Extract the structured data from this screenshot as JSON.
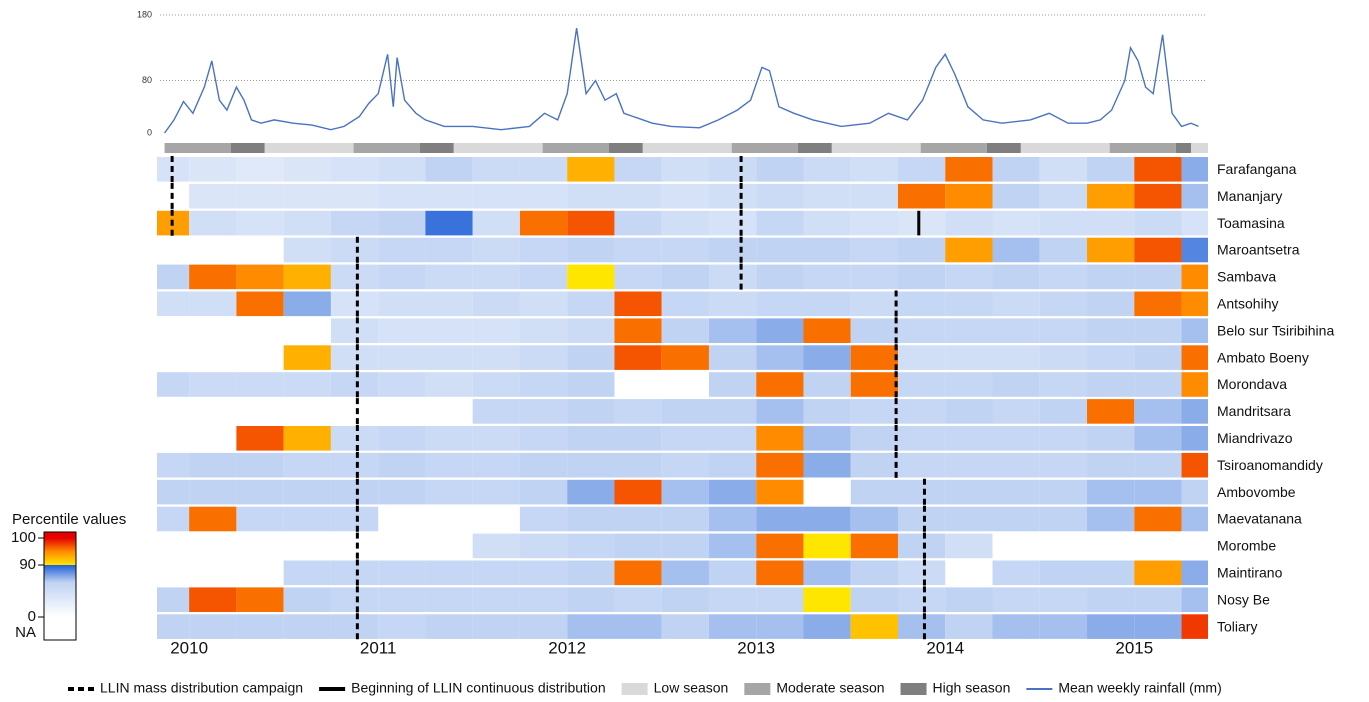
{
  "chart_data": {
    "type": "heatmap",
    "xlim": [
      2009.83,
      2015.39
    ],
    "xticks": [
      2010,
      2011,
      2012,
      2013,
      2014,
      2015
    ],
    "bins": [
      2009.83,
      2010,
      2010.25,
      2010.5,
      2010.75,
      2011,
      2011.25,
      2011.5,
      2011.75,
      2012,
      2012.25,
      2012.5,
      2012.75,
      2013,
      2013.25,
      2013.5,
      2013.75,
      2014,
      2014.25,
      2014.5,
      2014.75,
      2015,
      2015.25,
      2015.39
    ],
    "colorscale": [
      [
        0,
        "#ffffff"
      ],
      [
        60,
        "#c0d3f3"
      ],
      [
        89.9,
        "#1f5fd6"
      ],
      [
        90,
        "#ffe600"
      ],
      [
        95,
        "#ff8c00"
      ],
      [
        100,
        "#e60000"
      ]
    ],
    "na_color": "#ffffff",
    "colorbar": {
      "title": "Percentile values",
      "ticks": [
        100,
        90,
        0
      ],
      "na_label": "NA"
    },
    "rows": [
      {
        "name": "Farafangana",
        "mass_distribution": [
          2009.91,
          2012.92
        ],
        "values": [
          40,
          35,
          30,
          35,
          40,
          45,
          60,
          50,
          50,
          93,
          55,
          45,
          50,
          60,
          50,
          45,
          55,
          96,
          60,
          45,
          60,
          97,
          70
        ]
      },
      {
        "name": "Mananjary",
        "mass_distribution": [
          2009.91,
          2012.92
        ],
        "values": [
          null,
          35,
          35,
          35,
          35,
          40,
          40,
          40,
          40,
          45,
          45,
          40,
          45,
          50,
          45,
          45,
          96,
          95,
          60,
          50,
          94,
          97,
          65
        ]
      },
      {
        "name": "Toamasina",
        "mass_distribution": [
          2009.91,
          2012.92
        ],
        "continuous_distribution": [
          2013.86
        ],
        "values": [
          94,
          45,
          40,
          45,
          55,
          60,
          85,
          45,
          96,
          97,
          55,
          45,
          40,
          55,
          45,
          40,
          35,
          45,
          40,
          45,
          45,
          50,
          40
        ]
      },
      {
        "name": "Maroantsetra",
        "mass_distribution": [
          2010.89,
          2012.92
        ],
        "values": [
          null,
          null,
          null,
          45,
          50,
          55,
          55,
          50,
          55,
          60,
          55,
          55,
          60,
          60,
          60,
          55,
          60,
          94,
          65,
          60,
          94,
          97,
          80
        ]
      },
      {
        "name": "Sambava",
        "mass_distribution": [
          2010.89,
          2012.92
        ],
        "values": [
          60,
          96,
          95,
          93,
          50,
          55,
          50,
          50,
          55,
          90,
          55,
          60,
          50,
          60,
          55,
          55,
          60,
          55,
          60,
          55,
          60,
          60,
          95
        ]
      },
      {
        "name": "Antsohihy",
        "mass_distribution": [
          2010.89,
          2013.74
        ],
        "values": [
          45,
          45,
          96,
          70,
          40,
          45,
          45,
          50,
          45,
          55,
          97,
          55,
          50,
          55,
          55,
          50,
          55,
          55,
          50,
          55,
          60,
          96,
          95
        ]
      },
      {
        "name": "Belo sur Tsiribihina",
        "mass_distribution": [
          2010.89,
          2013.74
        ],
        "values": [
          null,
          null,
          null,
          null,
          45,
          40,
          40,
          40,
          45,
          50,
          96,
          60,
          65,
          70,
          96,
          60,
          55,
          55,
          55,
          55,
          60,
          60,
          65
        ]
      },
      {
        "name": "Ambato Boeny",
        "mass_distribution": [
          2010.89,
          2013.74
        ],
        "values": [
          null,
          null,
          null,
          93,
          45,
          45,
          45,
          45,
          50,
          60,
          97,
          96,
          60,
          65,
          70,
          96,
          45,
          45,
          45,
          50,
          55,
          60,
          96
        ]
      },
      {
        "name": "Morondava",
        "mass_distribution": [
          2010.89,
          2013.74
        ],
        "values": [
          55,
          50,
          50,
          50,
          55,
          50,
          45,
          50,
          55,
          60,
          null,
          null,
          60,
          96,
          60,
          96,
          55,
          55,
          60,
          55,
          60,
          60,
          95
        ]
      },
      {
        "name": "Mandritsara",
        "mass_distribution": [
          2010.89,
          2013.74
        ],
        "values": [
          null,
          null,
          null,
          null,
          null,
          null,
          null,
          55,
          55,
          60,
          55,
          60,
          60,
          65,
          60,
          55,
          55,
          60,
          55,
          60,
          96,
          65,
          70
        ]
      },
      {
        "name": "Miandrivazo",
        "mass_distribution": [
          2010.89,
          2013.74
        ],
        "values": [
          null,
          null,
          97,
          93,
          50,
          55,
          50,
          50,
          55,
          60,
          60,
          55,
          55,
          95,
          65,
          60,
          55,
          55,
          55,
          55,
          60,
          65,
          70
        ]
      },
      {
        "name": "Tsiroanomandidy",
        "mass_distribution": [
          2010.89,
          2013.74
        ],
        "values": [
          55,
          60,
          60,
          55,
          55,
          60,
          55,
          55,
          60,
          60,
          60,
          55,
          60,
          96,
          70,
          60,
          55,
          55,
          55,
          55,
          60,
          60,
          97
        ]
      },
      {
        "name": "Ambovombe",
        "mass_distribution": [
          2010.89,
          2013.89
        ],
        "values": [
          60,
          60,
          60,
          60,
          60,
          60,
          55,
          55,
          60,
          70,
          97,
          65,
          70,
          95,
          null,
          60,
          60,
          60,
          60,
          60,
          65,
          65,
          60
        ]
      },
      {
        "name": "Maevatanana",
        "mass_distribution": [
          2010.89,
          2013.89
        ],
        "values": [
          55,
          96,
          55,
          55,
          55,
          null,
          null,
          null,
          55,
          60,
          60,
          60,
          65,
          70,
          70,
          65,
          60,
          60,
          60,
          60,
          65,
          96,
          65
        ]
      },
      {
        "name": "Morombe",
        "mass_distribution": [
          2010.89,
          2013.89
        ],
        "values": [
          null,
          null,
          null,
          null,
          null,
          null,
          null,
          45,
          50,
          55,
          60,
          60,
          65,
          96,
          90,
          96,
          60,
          45,
          null,
          null,
          null,
          null,
          null
        ]
      },
      {
        "name": "Maintirano",
        "mass_distribution": [
          2010.89,
          2013.89
        ],
        "values": [
          null,
          null,
          null,
          55,
          55,
          55,
          55,
          55,
          55,
          60,
          96,
          65,
          60,
          96,
          65,
          60,
          50,
          null,
          55,
          60,
          60,
          94,
          70
        ]
      },
      {
        "name": "Nosy Be",
        "mass_distribution": [
          2010.89,
          2013.89
        ],
        "values": [
          60,
          97,
          96,
          60,
          55,
          55,
          55,
          55,
          55,
          60,
          55,
          60,
          55,
          55,
          90,
          60,
          55,
          60,
          55,
          55,
          60,
          60,
          65
        ]
      },
      {
        "name": "Toliary",
        "mass_distribution": [
          2010.89,
          2013.89
        ],
        "values": [
          60,
          60,
          60,
          60,
          60,
          55,
          60,
          60,
          60,
          65,
          65,
          60,
          65,
          65,
          70,
          92,
          65,
          60,
          65,
          65,
          70,
          70,
          98
        ]
      }
    ],
    "rainfall": {
      "type": "line",
      "name": "Mean weekly rainfall (mm)",
      "color": "#4a72c4",
      "ylim": [
        0,
        180
      ],
      "yticks": [
        0,
        80,
        180
      ],
      "grid": true,
      "x": [
        2009.87,
        2009.92,
        2009.97,
        2010.02,
        2010.08,
        2010.12,
        2010.16,
        2010.2,
        2010.25,
        2010.29,
        2010.33,
        2010.38,
        2010.45,
        2010.55,
        2010.65,
        2010.75,
        2010.82,
        2010.9,
        2010.95,
        2011.0,
        2011.05,
        2011.08,
        2011.1,
        2011.14,
        2011.2,
        2011.25,
        2011.35,
        2011.5,
        2011.65,
        2011.8,
        2011.88,
        2011.95,
        2012.0,
        2012.05,
        2012.1,
        2012.15,
        2012.2,
        2012.26,
        2012.3,
        2012.35,
        2012.45,
        2012.55,
        2012.7,
        2012.8,
        2012.9,
        2012.97,
        2013.03,
        2013.07,
        2013.12,
        2013.2,
        2013.3,
        2013.45,
        2013.6,
        2013.7,
        2013.8,
        2013.88,
        2013.95,
        2014.0,
        2014.05,
        2014.12,
        2014.2,
        2014.3,
        2014.45,
        2014.55,
        2014.65,
        2014.75,
        2014.82,
        2014.88,
        2014.95,
        2014.98,
        2015.02,
        2015.06,
        2015.1,
        2015.15,
        2015.2,
        2015.25,
        2015.3,
        2015.34
      ],
      "values": [
        0,
        20,
        48,
        30,
        70,
        110,
        50,
        35,
        70,
        50,
        20,
        15,
        20,
        15,
        12,
        5,
        10,
        25,
        45,
        60,
        120,
        40,
        115,
        50,
        30,
        20,
        10,
        10,
        5,
        10,
        30,
        20,
        60,
        160,
        60,
        80,
        50,
        60,
        30,
        25,
        15,
        10,
        8,
        20,
        35,
        50,
        100,
        95,
        40,
        30,
        20,
        10,
        15,
        30,
        20,
        50,
        100,
        120,
        90,
        40,
        20,
        15,
        20,
        30,
        15,
        15,
        20,
        35,
        80,
        130,
        110,
        70,
        60,
        150,
        30,
        10,
        15,
        10
      ]
    },
    "seasons": {
      "levels": [
        {
          "label": "Low season",
          "color": "#d9d9d9"
        },
        {
          "label": "Moderate season",
          "color": "#a6a6a6"
        },
        {
          "label": "High season",
          "color": "#7f7f7f"
        }
      ],
      "segments": [
        {
          "start": 2009.87,
          "end": 2010.22,
          "color": "#a6a6a6"
        },
        {
          "start": 2010.22,
          "end": 2010.4,
          "color": "#7f7f7f"
        },
        {
          "start": 2010.4,
          "end": 2010.87,
          "color": "#d9d9d9"
        },
        {
          "start": 2010.87,
          "end": 2011.22,
          "color": "#a6a6a6"
        },
        {
          "start": 2011.22,
          "end": 2011.4,
          "color": "#7f7f7f"
        },
        {
          "start": 2011.4,
          "end": 2011.87,
          "color": "#d9d9d9"
        },
        {
          "start": 2011.87,
          "end": 2012.22,
          "color": "#a6a6a6"
        },
        {
          "start": 2012.22,
          "end": 2012.4,
          "color": "#7f7f7f"
        },
        {
          "start": 2012.4,
          "end": 2012.87,
          "color": "#d9d9d9"
        },
        {
          "start": 2012.87,
          "end": 2013.22,
          "color": "#a6a6a6"
        },
        {
          "start": 2013.22,
          "end": 2013.4,
          "color": "#7f7f7f"
        },
        {
          "start": 2013.4,
          "end": 2013.87,
          "color": "#d9d9d9"
        },
        {
          "start": 2013.87,
          "end": 2014.22,
          "color": "#a6a6a6"
        },
        {
          "start": 2014.22,
          "end": 2014.4,
          "color": "#7f7f7f"
        },
        {
          "start": 2014.4,
          "end": 2014.87,
          "color": "#d9d9d9"
        },
        {
          "start": 2014.87,
          "end": 2015.22,
          "color": "#a6a6a6"
        },
        {
          "start": 2015.22,
          "end": 2015.3,
          "color": "#7f7f7f"
        },
        {
          "start": 2015.3,
          "end": 2015.39,
          "color": "#d9d9d9"
        }
      ]
    },
    "distribution_legend": [
      {
        "label": "LLIN mass distribution campaign",
        "style": "dashed"
      },
      {
        "label": "Beginning of LLIN continuous distribution",
        "style": "solid"
      }
    ]
  }
}
